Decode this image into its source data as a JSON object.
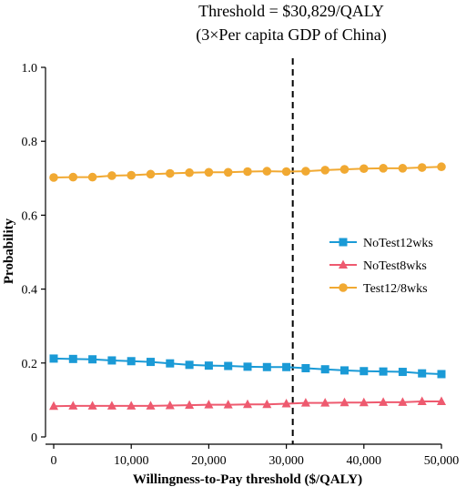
{
  "colors": {
    "NoTest12wks": "#1a9ad6",
    "NoTest8wks": "#ee5a6f",
    "Test12/8wks": "#f1a932",
    "axis": "#000000",
    "threshold": "#000000"
  },
  "chart_data": {
    "type": "line",
    "title": "",
    "xlabel": "Willingness-to-Pay threshold ($/QALY)",
    "ylabel": "Probability",
    "xlim": [
      0,
      50000
    ],
    "ylim": [
      0,
      1.0
    ],
    "grid": false,
    "legend_position": "right-middle",
    "x_ticks": [
      0,
      10000,
      20000,
      30000,
      40000,
      50000
    ],
    "x_tick_labels": [
      "0",
      "10,000",
      "20,000",
      "30,000",
      "40,000",
      "50,000"
    ],
    "y_ticks": [
      0,
      0.2,
      0.4,
      0.6,
      0.8,
      1.0
    ],
    "y_tick_labels": [
      "0",
      "0.2",
      "0.4",
      "0.6",
      "0.8",
      "1.0"
    ],
    "x": [
      0,
      2500,
      5000,
      7500,
      10000,
      12500,
      15000,
      17500,
      20000,
      22500,
      25000,
      27500,
      30000,
      32500,
      35000,
      37500,
      40000,
      42500,
      45000,
      47500,
      50000
    ],
    "series": [
      {
        "name": "NoTest12wks",
        "marker": "square",
        "values": [
          0.212,
          0.211,
          0.21,
          0.207,
          0.205,
          0.203,
          0.199,
          0.195,
          0.193,
          0.192,
          0.19,
          0.189,
          0.189,
          0.186,
          0.183,
          0.18,
          0.178,
          0.177,
          0.176,
          0.172,
          0.17
        ]
      },
      {
        "name": "NoTest8wks",
        "marker": "triangle",
        "values": [
          0.083,
          0.084,
          0.084,
          0.084,
          0.084,
          0.084,
          0.085,
          0.086,
          0.087,
          0.087,
          0.088,
          0.088,
          0.09,
          0.092,
          0.092,
          0.093,
          0.093,
          0.094,
          0.094,
          0.096,
          0.096
        ]
      },
      {
        "name": "Test12/8wks",
        "marker": "circle",
        "values": [
          0.702,
          0.703,
          0.703,
          0.707,
          0.708,
          0.711,
          0.713,
          0.715,
          0.716,
          0.716,
          0.718,
          0.719,
          0.718,
          0.719,
          0.722,
          0.724,
          0.726,
          0.727,
          0.727,
          0.729,
          0.731
        ]
      }
    ],
    "annotations": [
      {
        "type": "vertical-dashed-line",
        "x": 30829,
        "lines": [
          "Threshold = $30,829/QALY",
          "(3×Per capita GDP of China)"
        ]
      }
    ]
  }
}
